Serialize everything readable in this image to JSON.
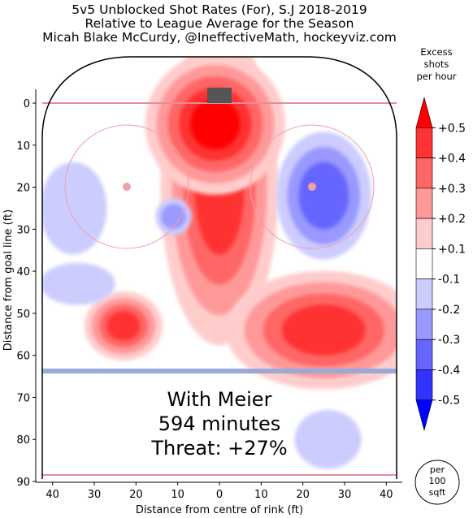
{
  "chart_data": {
    "type": "heatmap",
    "title_lines": [
      "5v5 Unblocked Shot Rates (For), S.J 2018-2019",
      "Relative to League Average for the Season",
      "Micah Blake McCurdy, @IneffectiveMath, hockeyviz.com"
    ],
    "xlabel": "Distance from centre of rink (ft)",
    "ylabel": "Distance from goal line (ft)",
    "xlim": [
      42.5,
      -42.5
    ],
    "ylim": [
      -11,
      90
    ],
    "x_ticks": [
      40,
      30,
      20,
      10,
      0,
      10,
      20,
      30,
      40
    ],
    "y_ticks": [
      0,
      10,
      20,
      30,
      40,
      50,
      60,
      70,
      80,
      90
    ],
    "overlay_text": [
      "With Meier",
      "594 minutes",
      "Threat: +27%"
    ],
    "colorbar": {
      "title_lines": [
        "Excess",
        "shots",
        "per hour"
      ],
      "levels": [
        "+0.5",
        "+0.4",
        "+0.3",
        "+0.2",
        "+0.1",
        "-0.1",
        "-0.2",
        "-0.3",
        "-0.4",
        "-0.5"
      ],
      "colors": [
        "#ff0000",
        "#ff3333",
        "#ff6666",
        "#ff9999",
        "#ffcccc",
        "#ffffff",
        "#ccccff",
        "#9999ff",
        "#6666ff",
        "#3333ff",
        "#0000ff"
      ],
      "unit_note_lines": [
        "per",
        "100",
        "sqft"
      ]
    },
    "regions": [
      {
        "name": "slot-high-danger",
        "level": 4,
        "cx": 0,
        "cy": 20,
        "rx": 6,
        "ry": 16
      },
      {
        "name": "slot-upper",
        "level": 5,
        "cx": 1,
        "cy": 5,
        "rx": 6,
        "ry": 6
      },
      {
        "name": "right-low",
        "level": 4,
        "cx": -25,
        "cy": 54,
        "rx": 10,
        "ry": 6
      },
      {
        "name": "left-pocket",
        "level": 4,
        "cx": 23,
        "cy": 53,
        "rx": 4,
        "ry": 3.5
      },
      {
        "name": "right-faceoff-cold",
        "level": -3,
        "cx": -25,
        "cy": 22,
        "rx": 6,
        "ry": 8
      },
      {
        "name": "left-wall-cold",
        "level": -1,
        "cx": 35,
        "cy": 25,
        "rx": 8,
        "ry": 11
      },
      {
        "name": "left-point-cold",
        "level": -1,
        "cx": 34,
        "cy": 43,
        "rx": 9,
        "ry": 5
      },
      {
        "name": "mid-cold",
        "level": -2,
        "cx": 11,
        "cy": 27,
        "rx": 3,
        "ry": 3
      },
      {
        "name": "right-neutral-cold",
        "level": -1,
        "cx": -26,
        "cy": 80,
        "rx": 8,
        "ry": 7
      }
    ]
  },
  "colors": {
    "rink_line": "#000000",
    "goal_line": "#e88a9a",
    "blue_line": "#9aa9d6",
    "goal_net": "#555555",
    "faceoff_circle": "#f0a0a8"
  }
}
